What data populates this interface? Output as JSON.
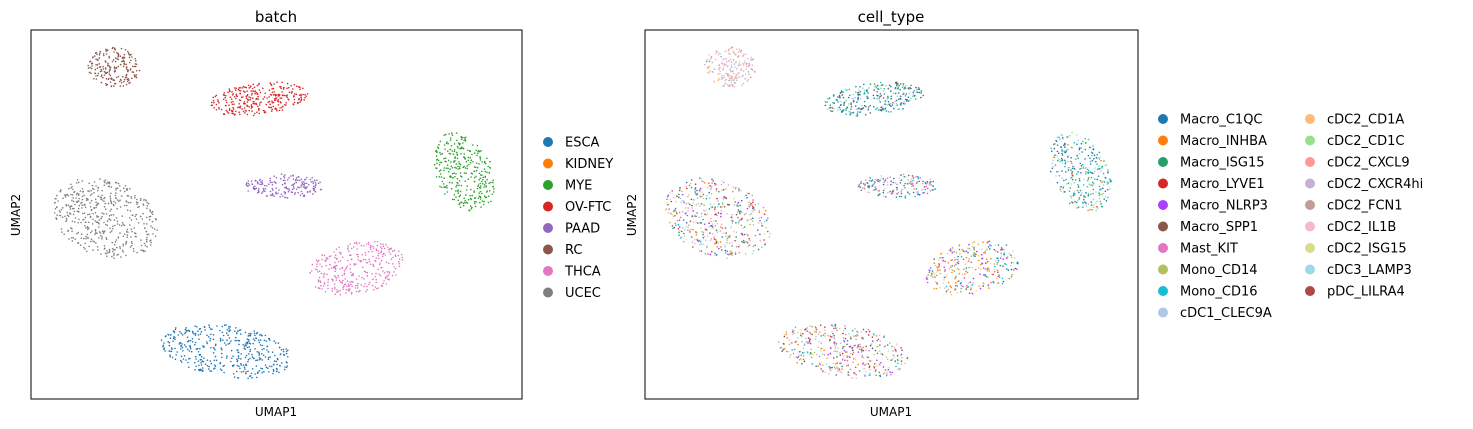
{
  "chart_data": [
    {
      "type": "scatter",
      "title": "batch",
      "xlabel": "UMAP1",
      "ylabel": "UMAP2",
      "grid": false,
      "ticks_shown": false,
      "legend_position": "right",
      "legend_columns": 1,
      "legend": [
        {
          "label": "ESCA",
          "color": "#1f77b4"
        },
        {
          "label": "KIDNEY",
          "color": "#ff7f0e"
        },
        {
          "label": "MYE",
          "color": "#2ca02c"
        },
        {
          "label": "OV-FTC",
          "color": "#d62728"
        },
        {
          "label": "PAAD",
          "color": "#9467bd"
        },
        {
          "label": "RC",
          "color": "#8c564b"
        },
        {
          "label": "THCA",
          "color": "#e377c2"
        },
        {
          "label": "UCEC",
          "color": "#7f7f7f"
        }
      ]
    },
    {
      "type": "scatter",
      "title": "cell_type",
      "xlabel": "UMAP1",
      "ylabel": "UMAP2",
      "grid": false,
      "ticks_shown": false,
      "legend_position": "right",
      "legend_columns": 2,
      "legend": [
        {
          "label": "Macro_C1QC",
          "color": "#1f77b4"
        },
        {
          "label": "Macro_INHBA",
          "color": "#ff7f0e"
        },
        {
          "label": "Macro_ISG15",
          "color": "#279e68"
        },
        {
          "label": "Macro_LYVE1",
          "color": "#d62728"
        },
        {
          "label": "Macro_NLRP3",
          "color": "#aa40fc"
        },
        {
          "label": "Macro_SPP1",
          "color": "#8c564b"
        },
        {
          "label": "Mast_KIT",
          "color": "#e377c2"
        },
        {
          "label": "Mono_CD14",
          "color": "#b5bd61"
        },
        {
          "label": "Mono_CD16",
          "color": "#17becf"
        },
        {
          "label": "cDC1_CLEC9A",
          "color": "#aec7e8"
        },
        {
          "label": "cDC2_CD1A",
          "color": "#ffbb78"
        },
        {
          "label": "cDC2_CD1C",
          "color": "#98df8a"
        },
        {
          "label": "cDC2_CXCL9",
          "color": "#ff9896"
        },
        {
          "label": "cDC2_CXCR4hi",
          "color": "#c5b0d5"
        },
        {
          "label": "cDC2_FCN1",
          "color": "#c49c94"
        },
        {
          "label": "cDC2_IL1B",
          "color": "#f7b6d2"
        },
        {
          "label": "cDC2_ISG15",
          "color": "#dbdb8d"
        },
        {
          "label": "cDC3_LAMP3",
          "color": "#9edae5"
        },
        {
          "label": "pDC_LILRA4",
          "color": "#ad494a"
        }
      ]
    }
  ]
}
